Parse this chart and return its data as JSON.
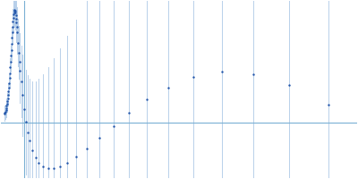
{
  "background_color": "#ffffff",
  "error_color": "#b8d0ea",
  "point_color": "#2255aa",
  "hline_color": "#7ab0d4",
  "vline_color": "#7ab0d4",
  "points": [
    [
      0.008,
      0.016,
      0.012
    ],
    [
      0.01,
      0.018,
      0.013
    ],
    [
      0.012,
      0.02,
      0.013
    ],
    [
      0.013,
      0.023,
      0.013
    ],
    [
      0.014,
      0.026,
      0.013
    ],
    [
      0.015,
      0.03,
      0.013
    ],
    [
      0.016,
      0.034,
      0.014
    ],
    [
      0.017,
      0.039,
      0.014
    ],
    [
      0.018,
      0.044,
      0.014
    ],
    [
      0.019,
      0.05,
      0.014
    ],
    [
      0.02,
      0.057,
      0.015
    ],
    [
      0.021,
      0.064,
      0.015
    ],
    [
      0.022,
      0.072,
      0.015
    ],
    [
      0.023,
      0.081,
      0.016
    ],
    [
      0.024,
      0.09,
      0.016
    ],
    [
      0.025,
      0.1,
      0.017
    ],
    [
      0.026,
      0.11,
      0.017
    ],
    [
      0.027,
      0.121,
      0.018
    ],
    [
      0.028,
      0.132,
      0.019
    ],
    [
      0.029,
      0.143,
      0.019
    ],
    [
      0.03,
      0.154,
      0.02
    ],
    [
      0.031,
      0.164,
      0.021
    ],
    [
      0.032,
      0.174,
      0.022
    ],
    [
      0.033,
      0.183,
      0.023
    ],
    [
      0.034,
      0.19,
      0.024
    ],
    [
      0.035,
      0.196,
      0.025
    ],
    [
      0.036,
      0.2,
      0.026
    ],
    [
      0.037,
      0.203,
      0.027
    ],
    [
      0.038,
      0.204,
      0.028
    ],
    [
      0.039,
      0.202,
      0.029
    ],
    [
      0.04,
      0.199,
      0.03
    ],
    [
      0.041,
      0.194,
      0.031
    ],
    [
      0.042,
      0.188,
      0.033
    ],
    [
      0.043,
      0.181,
      0.035
    ],
    [
      0.044,
      0.173,
      0.037
    ],
    [
      0.045,
      0.164,
      0.039
    ],
    [
      0.047,
      0.145,
      0.043
    ],
    [
      0.049,
      0.127,
      0.048
    ],
    [
      0.051,
      0.11,
      0.053
    ],
    [
      0.053,
      0.094,
      0.058
    ],
    [
      0.056,
      0.074,
      0.065
    ],
    [
      0.06,
      0.05,
      0.074
    ],
    [
      0.065,
      0.024,
      0.085
    ],
    [
      0.07,
      0.001,
      0.095
    ],
    [
      0.075,
      -0.018,
      0.104
    ],
    [
      0.08,
      -0.032,
      0.112
    ],
    [
      0.088,
      -0.05,
      0.125
    ],
    [
      0.096,
      -0.063,
      0.138
    ],
    [
      0.106,
      -0.073,
      0.152
    ],
    [
      0.118,
      -0.08,
      0.168
    ],
    [
      0.132,
      -0.083,
      0.184
    ],
    [
      0.148,
      -0.083,
      0.2
    ],
    [
      0.165,
      -0.08,
      0.215
    ],
    [
      0.185,
      -0.073,
      0.23
    ],
    [
      0.21,
      -0.062,
      0.248
    ],
    [
      0.24,
      -0.047,
      0.268
    ],
    [
      0.275,
      -0.028,
      0.29
    ],
    [
      0.315,
      -0.006,
      0.314
    ],
    [
      0.36,
      0.018,
      0.34
    ],
    [
      0.41,
      0.042,
      0.368
    ],
    [
      0.47,
      0.064,
      0.4
    ],
    [
      0.54,
      0.083,
      0.436
    ],
    [
      0.62,
      0.092,
      0.476
    ],
    [
      0.71,
      0.088,
      0.52
    ],
    [
      0.81,
      0.068,
      0.566
    ],
    [
      0.92,
      0.033,
      0.614
    ]
  ],
  "xlim": [
    0.0,
    1.0
  ],
  "ylim": [
    -0.1,
    0.22
  ],
  "hline_y": 0.0,
  "vline_x": 0.065
}
